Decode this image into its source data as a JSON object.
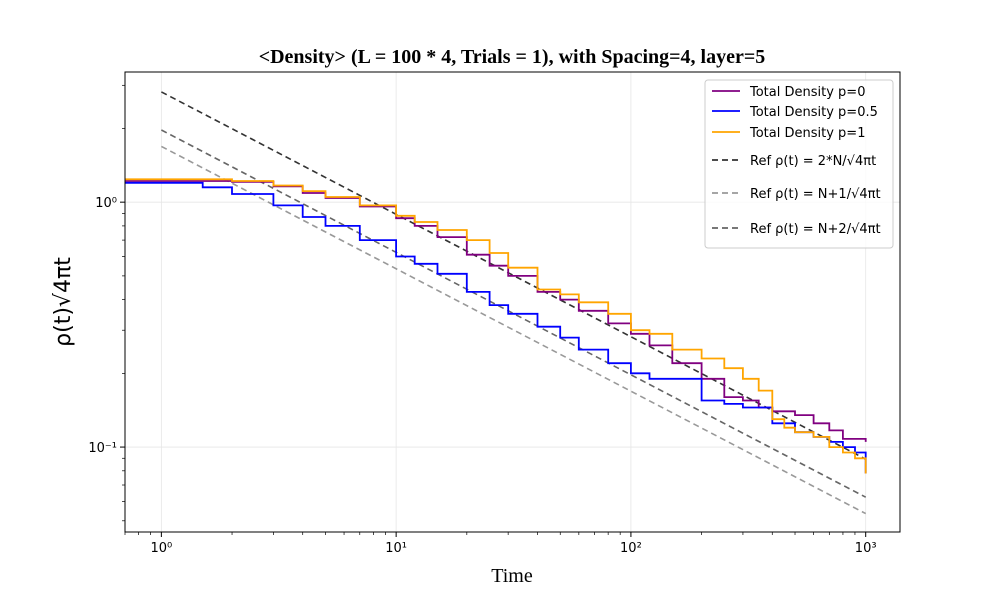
{
  "chart_data": {
    "type": "line",
    "title": "<Density> (L = 100 * 4, Trials = 1), with Spacing=4, layer=5",
    "xlabel": "Time",
    "ylabel": "ρ(t)√4πt",
    "xscale": "log",
    "yscale": "log",
    "xlim": [
      0.7,
      1400
    ],
    "ylim": [
      0.045,
      3.4
    ],
    "grid": true,
    "legend_position": "top-right",
    "x_ticks": [
      {
        "value": 1,
        "label": "10⁰"
      },
      {
        "value": 10,
        "label": "10¹"
      },
      {
        "value": 100,
        "label": "10²"
      },
      {
        "value": 1000,
        "label": "10³"
      }
    ],
    "y_ticks": [
      {
        "value": 0.1,
        "label": "10⁻¹"
      },
      {
        "value": 1,
        "label": "10⁰"
      }
    ],
    "series": [
      {
        "name": "Total Density p=0",
        "color": "#800080",
        "style": "solid",
        "x": [
          0.7,
          1,
          2,
          3,
          4,
          5,
          7,
          10,
          12,
          15,
          20,
          25,
          30,
          40,
          50,
          60,
          80,
          100,
          120,
          150,
          200,
          250,
          300,
          350,
          400,
          500,
          600,
          700,
          800,
          1000
        ],
        "y": [
          1.22,
          1.22,
          1.21,
          1.16,
          1.09,
          1.04,
          0.96,
          0.86,
          0.8,
          0.72,
          0.61,
          0.55,
          0.5,
          0.43,
          0.4,
          0.36,
          0.32,
          0.29,
          0.26,
          0.22,
          0.19,
          0.16,
          0.155,
          0.145,
          0.14,
          0.135,
          0.125,
          0.117,
          0.108,
          0.105
        ]
      },
      {
        "name": "Total Density p=0.5",
        "color": "#0000ff",
        "style": "solid",
        "x": [
          0.7,
          1,
          1.5,
          2,
          3,
          4,
          5,
          7,
          10,
          12,
          15,
          20,
          25,
          30,
          40,
          50,
          60,
          80,
          100,
          120,
          150,
          200,
          250,
          300,
          400,
          500,
          600,
          700,
          800,
          900,
          1000
        ],
        "y": [
          1.2,
          1.2,
          1.15,
          1.08,
          0.97,
          0.87,
          0.8,
          0.7,
          0.6,
          0.56,
          0.51,
          0.43,
          0.38,
          0.35,
          0.31,
          0.28,
          0.25,
          0.22,
          0.2,
          0.19,
          0.19,
          0.155,
          0.15,
          0.145,
          0.125,
          0.115,
          0.11,
          0.105,
          0.1,
          0.095,
          0.078
        ]
      },
      {
        "name": "Total Density p=1",
        "color": "#ffa500",
        "style": "solid",
        "x": [
          0.7,
          1,
          2,
          3,
          4,
          5,
          7,
          10,
          12,
          15,
          20,
          25,
          30,
          40,
          50,
          60,
          80,
          100,
          120,
          150,
          200,
          250,
          300,
          350,
          400,
          450,
          500,
          600,
          700,
          800,
          900,
          1000
        ],
        "y": [
          1.24,
          1.24,
          1.22,
          1.17,
          1.11,
          1.05,
          0.97,
          0.88,
          0.83,
          0.77,
          0.7,
          0.62,
          0.54,
          0.44,
          0.42,
          0.39,
          0.35,
          0.3,
          0.29,
          0.25,
          0.23,
          0.21,
          0.19,
          0.17,
          0.13,
          0.12,
          0.115,
          0.11,
          0.1,
          0.095,
          0.09,
          0.078
        ]
      },
      {
        "name": "Ref ρ(t) = 2*N/√4πt",
        "color": "#333333",
        "style": "dashed",
        "x": [
          1,
          1000
        ],
        "y": [
          2.82,
          0.0892
        ]
      },
      {
        "name": "Ref ρ(t) = N+1/√4πt",
        "color": "#999999",
        "style": "dashed",
        "x": [
          1,
          1000
        ],
        "y": [
          1.69,
          0.0535
        ]
      },
      {
        "name": "Ref ρ(t) = N+2/√4πt",
        "color": "#666666",
        "style": "dashed",
        "x": [
          1,
          1000
        ],
        "y": [
          1.97,
          0.0624
        ]
      }
    ]
  }
}
